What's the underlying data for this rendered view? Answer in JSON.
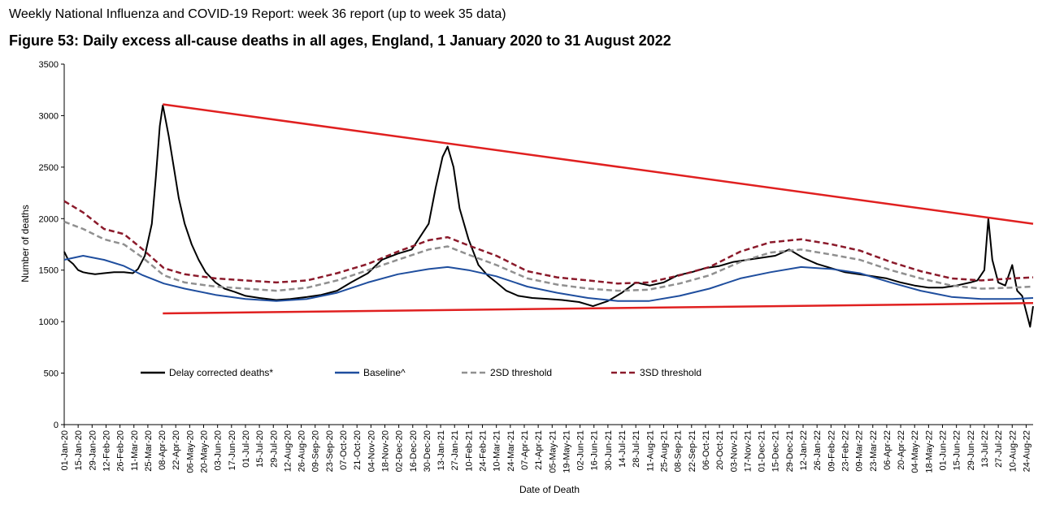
{
  "header": {
    "report_title": "Weekly National Influenza and COVID-19 Report: week 36 report (up to week 35 data)",
    "figure_title": "Figure 53: Daily excess all-cause deaths in all ages, England, 1 January 2020 to 31 August 2022"
  },
  "chart_data": {
    "type": "line",
    "title": "Figure 53: Daily excess all-cause deaths in all ages, England, 1 January 2020 to 31 August 2022",
    "xlabel": "Date of Death",
    "ylabel": "Number of deaths",
    "ylim": [
      0,
      3500
    ],
    "yticks": [
      0,
      500,
      1000,
      1500,
      2000,
      2500,
      3000,
      3500
    ],
    "x_range": [
      "2020-01-01",
      "2022-08-31"
    ],
    "xtick_labels": [
      "01-Jan-20",
      "15-Jan-20",
      "29-Jan-20",
      "12-Feb-20",
      "26-Feb-20",
      "11-Mar-20",
      "25-Mar-20",
      "08-Apr-20",
      "22-Apr-20",
      "06-May-20",
      "20-May-20",
      "03-Jun-20",
      "17-Jun-20",
      "01-Jul-20",
      "15-Jul-20",
      "29-Jul-20",
      "12-Aug-20",
      "26-Aug-20",
      "09-Sep-20",
      "23-Sep-20",
      "07-Oct-20",
      "21-Oct-20",
      "04-Nov-20",
      "18-Nov-20",
      "02-Dec-20",
      "16-Dec-20",
      "30-Dec-20",
      "13-Jan-21",
      "27-Jan-21",
      "10-Feb-21",
      "24-Feb-21",
      "10-Mar-21",
      "24-Mar-21",
      "07-Apr-21",
      "21-Apr-21",
      "05-May-21",
      "19-May-21",
      "02-Jun-21",
      "16-Jun-21",
      "30-Jun-21",
      "14-Jul-21",
      "28-Jul-21",
      "11-Aug-21",
      "25-Aug-21",
      "08-Sep-21",
      "22-Sep-21",
      "06-Oct-21",
      "20-Oct-21",
      "03-Nov-21",
      "17-Nov-21",
      "01-Dec-21",
      "15-Dec-21",
      "29-Dec-21",
      "12-Jan-22",
      "26-Jan-22",
      "09-Feb-22",
      "23-Feb-22",
      "09-Mar-22",
      "23-Mar-22",
      "06-Apr-22",
      "20-Apr-22",
      "04-May-22",
      "18-May-22",
      "01-Jun-22",
      "15-Jun-22",
      "29-Jun-22",
      "13-Jul-22",
      "27-Jul-22",
      "10-Aug-22",
      "24-Aug-22"
    ],
    "legend_placement": "inside-middle",
    "grid": false,
    "series": [
      {
        "name": "Delay corrected deaths*",
        "color": "#000000",
        "style": "solid",
        "points": [
          [
            "2020-01-01",
            1680
          ],
          [
            "2020-01-05",
            1600
          ],
          [
            "2020-01-10",
            1560
          ],
          [
            "2020-01-15",
            1500
          ],
          [
            "2020-01-20",
            1480
          ],
          [
            "2020-01-25",
            1470
          ],
          [
            "2020-02-01",
            1460
          ],
          [
            "2020-02-10",
            1470
          ],
          [
            "2020-02-20",
            1480
          ],
          [
            "2020-03-01",
            1480
          ],
          [
            "2020-03-10",
            1470
          ],
          [
            "2020-03-15",
            1510
          ],
          [
            "2020-03-22",
            1640
          ],
          [
            "2020-03-29",
            1950
          ],
          [
            "2020-04-02",
            2400
          ],
          [
            "2020-04-06",
            2900
          ],
          [
            "2020-04-09",
            3100
          ],
          [
            "2020-04-12",
            2950
          ],
          [
            "2020-04-15",
            2800
          ],
          [
            "2020-04-20",
            2500
          ],
          [
            "2020-04-25",
            2200
          ],
          [
            "2020-05-01",
            1950
          ],
          [
            "2020-05-08",
            1750
          ],
          [
            "2020-05-15",
            1600
          ],
          [
            "2020-05-22",
            1480
          ],
          [
            "2020-06-01",
            1380
          ],
          [
            "2020-06-10",
            1320
          ],
          [
            "2020-06-20",
            1290
          ],
          [
            "2020-07-01",
            1250
          ],
          [
            "2020-07-15",
            1230
          ],
          [
            "2020-08-01",
            1210
          ],
          [
            "2020-08-15",
            1220
          ],
          [
            "2020-09-01",
            1240
          ],
          [
            "2020-09-15",
            1260
          ],
          [
            "2020-10-01",
            1300
          ],
          [
            "2020-10-15",
            1380
          ],
          [
            "2020-11-01",
            1470
          ],
          [
            "2020-11-15",
            1600
          ],
          [
            "2020-12-01",
            1660
          ],
          [
            "2020-12-15",
            1700
          ],
          [
            "2021-01-01",
            1950
          ],
          [
            "2021-01-08",
            2300
          ],
          [
            "2021-01-15",
            2600
          ],
          [
            "2021-01-20",
            2700
          ],
          [
            "2021-01-26",
            2500
          ],
          [
            "2021-02-01",
            2100
          ],
          [
            "2021-02-10",
            1800
          ],
          [
            "2021-02-20",
            1550
          ],
          [
            "2021-03-01",
            1450
          ],
          [
            "2021-03-10",
            1380
          ],
          [
            "2021-03-20",
            1300
          ],
          [
            "2021-04-01",
            1250
          ],
          [
            "2021-04-15",
            1230
          ],
          [
            "2021-05-01",
            1220
          ],
          [
            "2021-05-15",
            1210
          ],
          [
            "2021-06-01",
            1190
          ],
          [
            "2021-06-15",
            1150
          ],
          [
            "2021-06-30",
            1200
          ],
          [
            "2021-07-14",
            1280
          ],
          [
            "2021-07-28",
            1380
          ],
          [
            "2021-08-11",
            1350
          ],
          [
            "2021-08-25",
            1380
          ],
          [
            "2021-09-08",
            1450
          ],
          [
            "2021-09-22",
            1480
          ],
          [
            "2021-10-06",
            1520
          ],
          [
            "2021-10-20",
            1540
          ],
          [
            "2021-11-03",
            1580
          ],
          [
            "2021-11-17",
            1600
          ],
          [
            "2021-12-01",
            1620
          ],
          [
            "2021-12-15",
            1640
          ],
          [
            "2021-12-29",
            1700
          ],
          [
            "2022-01-12",
            1620
          ],
          [
            "2022-01-26",
            1560
          ],
          [
            "2022-02-09",
            1520
          ],
          [
            "2022-02-23",
            1480
          ],
          [
            "2022-03-09",
            1460
          ],
          [
            "2022-03-23",
            1440
          ],
          [
            "2022-04-06",
            1420
          ],
          [
            "2022-04-20",
            1380
          ],
          [
            "2022-05-04",
            1350
          ],
          [
            "2022-05-18",
            1330
          ],
          [
            "2022-06-01",
            1330
          ],
          [
            "2022-06-15",
            1350
          ],
          [
            "2022-06-29",
            1380
          ],
          [
            "2022-07-06",
            1400
          ],
          [
            "2022-07-13",
            1500
          ],
          [
            "2022-07-17",
            2000
          ],
          [
            "2022-07-21",
            1600
          ],
          [
            "2022-07-27",
            1380
          ],
          [
            "2022-08-03",
            1350
          ],
          [
            "2022-08-10",
            1550
          ],
          [
            "2022-08-15",
            1300
          ],
          [
            "2022-08-20",
            1250
          ],
          [
            "2022-08-24",
            1100
          ],
          [
            "2022-08-28",
            950
          ],
          [
            "2022-08-31",
            1150
          ]
        ]
      },
      {
        "name": "Baseline^",
        "color": "#1f4e9e",
        "style": "solid",
        "points": [
          [
            "2020-01-01",
            1600
          ],
          [
            "2020-01-20",
            1640
          ],
          [
            "2020-02-10",
            1600
          ],
          [
            "2020-03-01",
            1540
          ],
          [
            "2020-03-20",
            1450
          ],
          [
            "2020-04-10",
            1370
          ],
          [
            "2020-05-01",
            1320
          ],
          [
            "2020-06-01",
            1260
          ],
          [
            "2020-07-01",
            1220
          ],
          [
            "2020-08-01",
            1200
          ],
          [
            "2020-09-01",
            1220
          ],
          [
            "2020-10-01",
            1280
          ],
          [
            "2020-11-01",
            1380
          ],
          [
            "2020-12-01",
            1460
          ],
          [
            "2021-01-01",
            1510
          ],
          [
            "2021-01-20",
            1530
          ],
          [
            "2021-02-10",
            1500
          ],
          [
            "2021-03-10",
            1440
          ],
          [
            "2021-04-10",
            1340
          ],
          [
            "2021-05-10",
            1280
          ],
          [
            "2021-06-10",
            1230
          ],
          [
            "2021-07-10",
            1200
          ],
          [
            "2021-08-10",
            1200
          ],
          [
            "2021-09-10",
            1250
          ],
          [
            "2021-10-10",
            1320
          ],
          [
            "2021-11-10",
            1420
          ],
          [
            "2021-12-10",
            1480
          ],
          [
            "2022-01-10",
            1530
          ],
          [
            "2022-02-10",
            1510
          ],
          [
            "2022-03-10",
            1470
          ],
          [
            "2022-04-10",
            1380
          ],
          [
            "2022-05-10",
            1300
          ],
          [
            "2022-06-10",
            1240
          ],
          [
            "2022-07-10",
            1220
          ],
          [
            "2022-08-10",
            1220
          ],
          [
            "2022-08-31",
            1230
          ]
        ]
      },
      {
        "name": "2SD threshold",
        "color": "#909090",
        "style": "dashed",
        "points": [
          [
            "2020-01-01",
            1970
          ],
          [
            "2020-01-20",
            1900
          ],
          [
            "2020-02-10",
            1800
          ],
          [
            "2020-03-01",
            1750
          ],
          [
            "2020-03-20",
            1620
          ],
          [
            "2020-04-10",
            1450
          ],
          [
            "2020-05-01",
            1380
          ],
          [
            "2020-06-01",
            1340
          ],
          [
            "2020-07-01",
            1320
          ],
          [
            "2020-08-01",
            1300
          ],
          [
            "2020-09-01",
            1330
          ],
          [
            "2020-10-01",
            1400
          ],
          [
            "2020-11-01",
            1500
          ],
          [
            "2020-12-01",
            1600
          ],
          [
            "2021-01-01",
            1700
          ],
          [
            "2021-01-20",
            1730
          ],
          [
            "2021-02-10",
            1650
          ],
          [
            "2021-03-10",
            1550
          ],
          [
            "2021-04-10",
            1420
          ],
          [
            "2021-05-10",
            1360
          ],
          [
            "2021-06-10",
            1320
          ],
          [
            "2021-07-10",
            1300
          ],
          [
            "2021-08-10",
            1310
          ],
          [
            "2021-09-10",
            1370
          ],
          [
            "2021-10-10",
            1450
          ],
          [
            "2021-11-10",
            1580
          ],
          [
            "2021-12-10",
            1670
          ],
          [
            "2022-01-10",
            1700
          ],
          [
            "2022-02-10",
            1650
          ],
          [
            "2022-03-10",
            1600
          ],
          [
            "2022-04-10",
            1500
          ],
          [
            "2022-05-10",
            1420
          ],
          [
            "2022-06-10",
            1350
          ],
          [
            "2022-07-10",
            1320
          ],
          [
            "2022-08-10",
            1330
          ],
          [
            "2022-08-31",
            1340
          ]
        ]
      },
      {
        "name": "3SD threshold",
        "color": "#8b1a2b",
        "style": "dashed",
        "points": [
          [
            "2020-01-01",
            2170
          ],
          [
            "2020-01-20",
            2060
          ],
          [
            "2020-02-10",
            1900
          ],
          [
            "2020-03-01",
            1850
          ],
          [
            "2020-03-20",
            1700
          ],
          [
            "2020-04-10",
            1520
          ],
          [
            "2020-05-01",
            1460
          ],
          [
            "2020-06-01",
            1420
          ],
          [
            "2020-07-01",
            1400
          ],
          [
            "2020-08-01",
            1380
          ],
          [
            "2020-09-01",
            1400
          ],
          [
            "2020-10-01",
            1470
          ],
          [
            "2020-11-01",
            1560
          ],
          [
            "2020-12-01",
            1680
          ],
          [
            "2021-01-01",
            1790
          ],
          [
            "2021-01-20",
            1820
          ],
          [
            "2021-02-10",
            1740
          ],
          [
            "2021-03-10",
            1640
          ],
          [
            "2021-04-10",
            1490
          ],
          [
            "2021-05-10",
            1430
          ],
          [
            "2021-06-10",
            1400
          ],
          [
            "2021-07-10",
            1370
          ],
          [
            "2021-08-10",
            1380
          ],
          [
            "2021-09-10",
            1450
          ],
          [
            "2021-10-10",
            1530
          ],
          [
            "2021-11-10",
            1680
          ],
          [
            "2021-12-10",
            1770
          ],
          [
            "2022-01-10",
            1800
          ],
          [
            "2022-02-10",
            1750
          ],
          [
            "2022-03-10",
            1690
          ],
          [
            "2022-04-10",
            1580
          ],
          [
            "2022-05-10",
            1490
          ],
          [
            "2022-06-10",
            1420
          ],
          [
            "2022-07-10",
            1400
          ],
          [
            "2022-08-10",
            1420
          ],
          [
            "2022-08-31",
            1430
          ]
        ]
      }
    ],
    "annotations": [
      {
        "type": "trend-line",
        "color": "#e02020",
        "from": [
          "2020-04-09",
          3110
        ],
        "to": [
          "2022-08-31",
          1950
        ]
      },
      {
        "type": "trend-line",
        "color": "#e02020",
        "from": [
          "2020-04-09",
          1080
        ],
        "to": [
          "2022-08-31",
          1180
        ]
      }
    ]
  }
}
